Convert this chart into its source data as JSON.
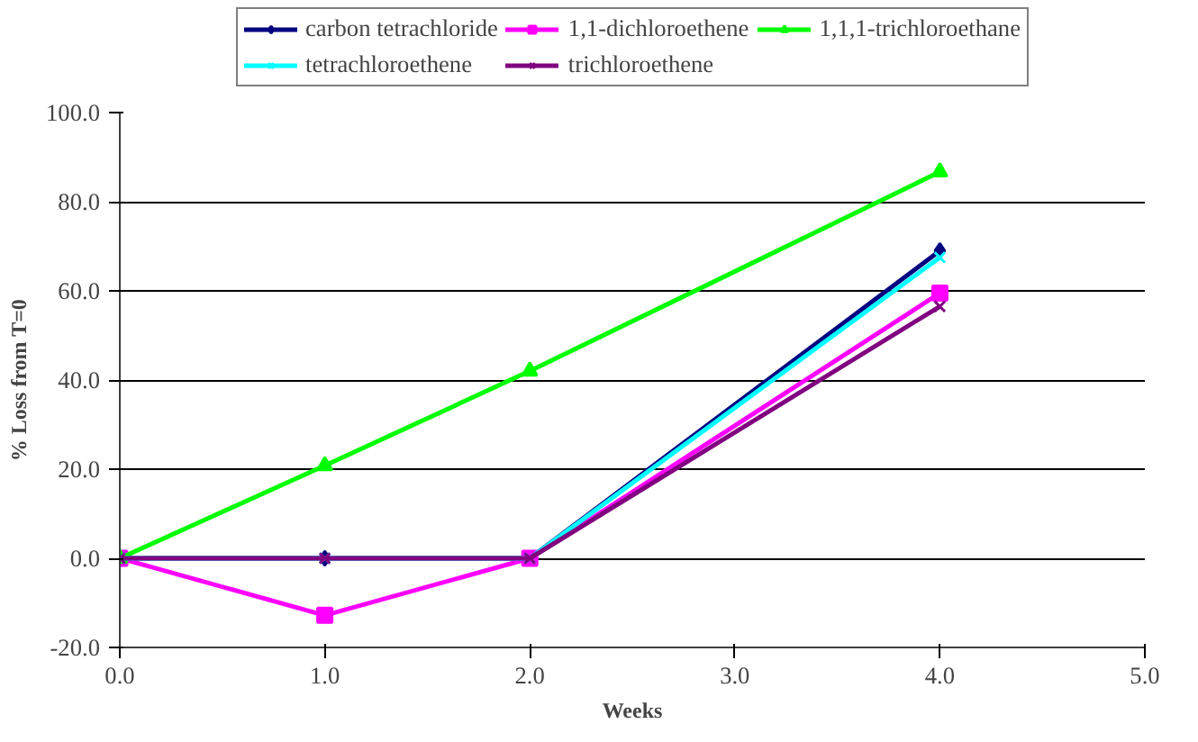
{
  "chart_data": {
    "type": "line",
    "xlabel": "Weeks",
    "ylabel": "% Loss from T=0",
    "x": [
      0,
      1,
      2,
      4
    ],
    "series": [
      {
        "name": "carbon tetrachloride",
        "color": "#000080",
        "marker": "diamond",
        "values": [
          0,
          0,
          0,
          69
        ]
      },
      {
        "name": "1,1-dichloroethene",
        "color": "#ff00ff",
        "marker": "square",
        "values": [
          0,
          -12.8,
          0,
          59.5
        ]
      },
      {
        "name": "1,1,1-trichloroethane",
        "color": "#00ff00",
        "marker": "triangle",
        "values": [
          0,
          20.8,
          42,
          86.7
        ]
      },
      {
        "name": "tetrachloroethene",
        "color": "#00ffff",
        "marker": "cross",
        "values": [
          0,
          0,
          0,
          67.5
        ]
      },
      {
        "name": "trichloroethene",
        "color": "#800080",
        "marker": "cross",
        "values": [
          0,
          0,
          0,
          56.5
        ]
      }
    ],
    "xlim": [
      0,
      5
    ],
    "xticks": [
      {
        "value": 0,
        "label": "0.0"
      },
      {
        "value": 1,
        "label": "1.0"
      },
      {
        "value": 2,
        "label": "2.0"
      },
      {
        "value": 3,
        "label": "3.0"
      },
      {
        "value": 4,
        "label": "4.0"
      },
      {
        "value": 5,
        "label": "5.0"
      }
    ],
    "ylim": [
      -20,
      100
    ],
    "yticks": [
      {
        "value": -20,
        "label": "-20.0"
      },
      {
        "value": 0,
        "label": "0.0"
      },
      {
        "value": 20,
        "label": "20.0"
      },
      {
        "value": 40,
        "label": "40.0"
      },
      {
        "value": 60,
        "label": "60.0"
      },
      {
        "value": 80,
        "label": "80.0"
      },
      {
        "value": 100,
        "label": "100.0"
      }
    ],
    "grid": "y",
    "legend": "top"
  }
}
